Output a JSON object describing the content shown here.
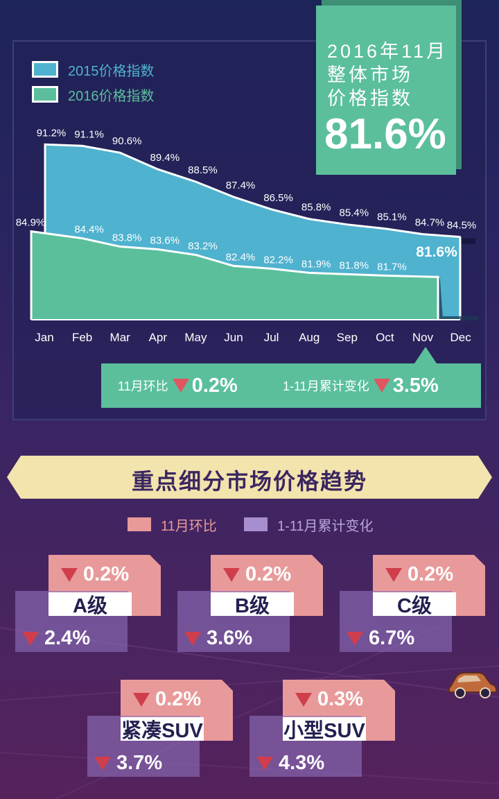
{
  "headline": {
    "line1": "2016年11月",
    "line2": "整体市场",
    "line3": "价格指数",
    "value": "81.6%"
  },
  "legend": {
    "series_2015": "2015价格指数",
    "series_2016": "2016价格指数"
  },
  "colors": {
    "series_2015": "#4fb2cf",
    "series_2016": "#5bbf9c",
    "mom": "#e89a9a",
    "ytd": "#8e70ba",
    "down": "#e05660",
    "banner": "#f3e3ad"
  },
  "chart_data": {
    "type": "area",
    "categories": [
      "Jan",
      "Feb",
      "Mar",
      "Apr",
      "May",
      "Jun",
      "Jul",
      "Aug",
      "Sep",
      "Oct",
      "Nov",
      "Dec"
    ],
    "series": [
      {
        "name": "2015价格指数",
        "values": [
          91.2,
          91.1,
          90.6,
          89.4,
          88.5,
          87.4,
          86.5,
          85.8,
          85.4,
          85.1,
          84.7,
          84.5
        ],
        "labels": [
          "91.2%",
          "91.1%",
          "90.6%",
          "89.4%",
          "88.5%",
          "87.4%",
          "86.5%",
          "85.8%",
          "85.4%",
          "85.1%",
          "84.7%",
          "84.5%"
        ]
      },
      {
        "name": "2016价格指数",
        "values": [
          84.9,
          84.4,
          83.8,
          83.6,
          83.2,
          82.4,
          82.2,
          81.9,
          81.8,
          81.7,
          81.6,
          null
        ],
        "labels": [
          "84.9%",
          "84.4%",
          "83.8%",
          "83.6%",
          "83.2%",
          "82.4%",
          "82.2%",
          "81.9%",
          "81.8%",
          "81.7%",
          "81.6%",
          ""
        ]
      }
    ],
    "legend": "top-left",
    "grid": false
  },
  "summary": {
    "mom_label": "11月环比",
    "mom_value": "0.2%",
    "ytd_label": "1-11月累计变化",
    "ytd_value": "3.5%"
  },
  "segments": {
    "title": "重点细分市场价格趋势",
    "legend_mom": "11月环比",
    "legend_ytd": "1-11月累计变化",
    "items": [
      {
        "name": "A级",
        "mom": "0.2%",
        "ytd": "2.4%"
      },
      {
        "name": "B级",
        "mom": "0.2%",
        "ytd": "3.6%"
      },
      {
        "name": "C级",
        "mom": "0.2%",
        "ytd": "6.7%"
      },
      {
        "name": "紧凑SUV",
        "mom": "0.2%",
        "ytd": "3.7%"
      },
      {
        "name": "小型SUV",
        "mom": "0.3%",
        "ytd": "4.3%"
      }
    ]
  }
}
